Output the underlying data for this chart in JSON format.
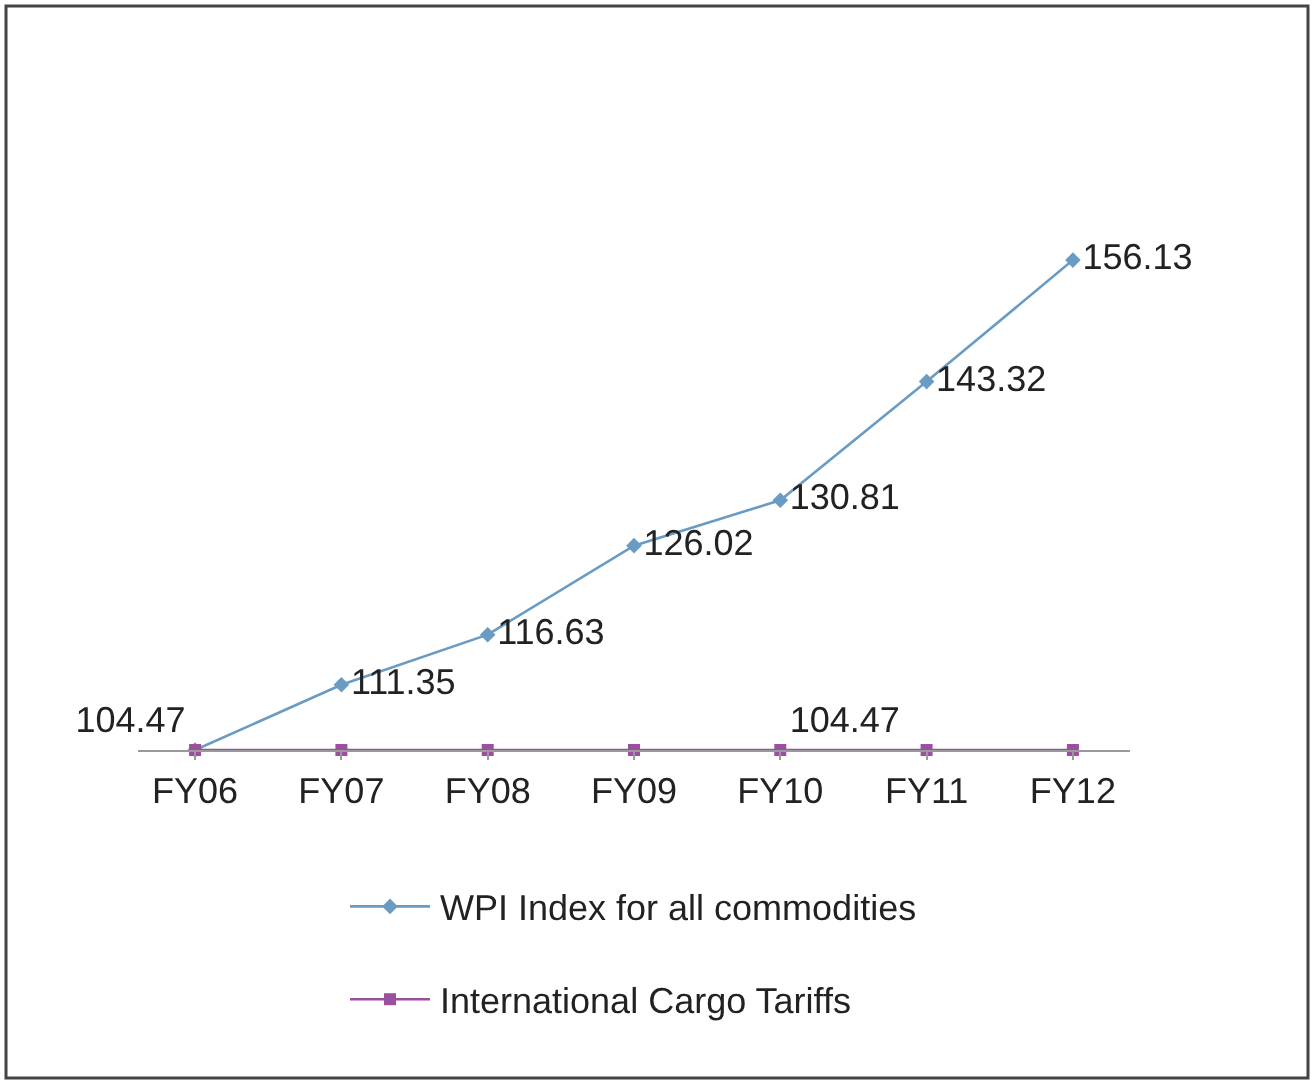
{
  "chart_data": {
    "type": "line",
    "categories": [
      "FY06",
      "FY07",
      "FY08",
      "FY09",
      "FY10",
      "FY11",
      "FY12"
    ],
    "series": [
      {
        "name": "WPI Index for all commodities",
        "color": "#6a9bc3",
        "marker": "diamond",
        "values": [
          104.47,
          111.35,
          116.63,
          126.02,
          130.81,
          143.32,
          156.13
        ],
        "value_labels": [
          "104.47",
          "111.35",
          "116.63",
          "126.02",
          "130.81",
          "143.32",
          "156.13"
        ]
      },
      {
        "name": "International Cargo Tariffs",
        "color": "#9c4f9e",
        "marker": "square",
        "values": [
          104.47,
          104.47,
          104.47,
          104.47,
          104.47,
          104.47,
          104.47
        ],
        "value_labels": [
          null,
          null,
          null,
          null,
          "104.47",
          null,
          null
        ]
      }
    ],
    "tick_labels": "x",
    "legend": "bottom"
  }
}
